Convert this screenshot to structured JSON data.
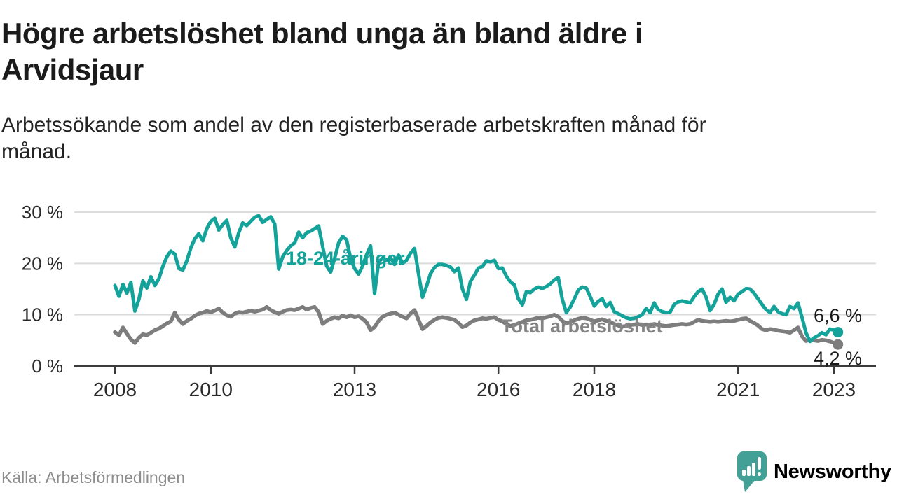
{
  "header": {
    "title_line1": "Högre arbetslöshet bland unga än bland äldre i",
    "title_line2": "Arvidsjaur",
    "subtitle_line1": "Arbetssökande som andel av den registerbaserade arbetskraften månad för",
    "subtitle_line2": "månad."
  },
  "chart_data": {
    "type": "line",
    "title": "Högre arbetslöshet bland unga än bland äldre i Arvidsjaur",
    "subtitle": "Arbetssökande som andel av den registerbaserade arbetskraften månad för månad.",
    "x_unit": "monthly, January 2008 - February 2023",
    "x_start": 2008.0,
    "x_step_years": 0.0833333,
    "x_ticks": [
      2008,
      2010,
      2013,
      2016,
      2018,
      2021,
      2023
    ],
    "y_ticks": [
      0,
      10,
      20,
      30
    ],
    "y_tick_suffix": " %",
    "ylim": [
      0,
      30
    ],
    "grid": "horizontal",
    "legend_position": "inline-labels",
    "series": [
      {
        "name": "18-24-åringar",
        "color": "#14a39a",
        "label_color": "#14a39a",
        "end_label": "6,6 %",
        "end_value": 6.6,
        "values": [
          15.7,
          13.6,
          15.9,
          14.2,
          16.3,
          10.7,
          13.0,
          16.6,
          15.2,
          17.4,
          15.7,
          17.0,
          19.4,
          21.3,
          22.4,
          21.8,
          19.0,
          18.7,
          20.5,
          23.0,
          24.8,
          25.8,
          24.4,
          26.8,
          28.2,
          28.8,
          26.5,
          27.6,
          28.4,
          25.0,
          23.2,
          26.0,
          27.9,
          27.4,
          28.2,
          29.0,
          29.3,
          28.0,
          28.6,
          29.1,
          27.7,
          18.9,
          21.3,
          22.5,
          23.4,
          24.0,
          26.1,
          25.0,
          26.0,
          26.3,
          26.8,
          27.3,
          23.3,
          19.5,
          18.3,
          21.0,
          24.0,
          25.3,
          24.6,
          21.0,
          19.0,
          17.9,
          19.5,
          21.7,
          23.4,
          14.1,
          20.3,
          21.0,
          20.6,
          21.1,
          19.8,
          21.6,
          20.0,
          20.6,
          22.0,
          22.9,
          18.0,
          13.4,
          15.5,
          18.0,
          19.2,
          19.8,
          19.8,
          19.6,
          19.3,
          18.4,
          19.1,
          15.0,
          13.0,
          16.5,
          17.7,
          19.1,
          19.4,
          20.5,
          20.3,
          20.6,
          19.0,
          19.1,
          17.5,
          16.4,
          15.8,
          13.1,
          11.9,
          14.5,
          14.3,
          15.0,
          15.4,
          15.1,
          15.5,
          16.0,
          16.8,
          17.2,
          13.0,
          10.4,
          11.5,
          13.1,
          14.8,
          15.4,
          15.2,
          13.5,
          11.7,
          12.6,
          13.1,
          11.6,
          12.4,
          10.6,
          10.2,
          9.8,
          9.4,
          9.2,
          9.3,
          9.6,
          10.0,
          11.2,
          10.4,
          12.3,
          11.0,
          10.6,
          10.4,
          10.5,
          12.0,
          12.5,
          12.7,
          12.5,
          12.3,
          13.5,
          14.5,
          15.0,
          13.4,
          10.8,
          12.0,
          14.0,
          15.0,
          12.4,
          13.4,
          12.7,
          14.0,
          14.5,
          15.1,
          15.0,
          14.2,
          13.1,
          12.0,
          11.0,
          10.4,
          11.6,
          10.6,
          10.2,
          10.0,
          11.6,
          11.2,
          12.3,
          9.5,
          6.5,
          4.8,
          5.5,
          5.9,
          6.5,
          6.1,
          7.2,
          7.0,
          6.6
        ]
      },
      {
        "name": "Total arbetslöshet",
        "color": "#7d7d7d",
        "label_color": "#848484",
        "end_label": "4,2 %",
        "end_value": 4.2,
        "values": [
          6.6,
          6.0,
          7.5,
          6.3,
          5.2,
          4.5,
          5.5,
          6.2,
          6.0,
          6.5,
          7.0,
          7.3,
          7.8,
          8.3,
          8.7,
          10.4,
          9.0,
          8.2,
          8.8,
          9.2,
          9.8,
          10.2,
          10.4,
          10.7,
          10.5,
          10.8,
          11.2,
          10.4,
          9.9,
          9.6,
          10.2,
          10.5,
          10.4,
          10.6,
          10.8,
          10.6,
          10.8,
          11.0,
          11.5,
          10.9,
          10.5,
          10.2,
          10.6,
          10.9,
          11.0,
          10.9,
          11.2,
          11.5,
          11.0,
          11.3,
          11.5,
          10.5,
          8.2,
          8.8,
          9.2,
          9.5,
          9.3,
          9.8,
          9.5,
          9.9,
          9.5,
          9.7,
          9.2,
          8.5,
          7.0,
          7.6,
          8.8,
          9.6,
          10.0,
          10.2,
          10.4,
          10.0,
          9.6,
          9.3,
          10.2,
          10.9,
          9.0,
          7.2,
          7.8,
          8.5,
          9.0,
          9.4,
          9.5,
          9.4,
          9.2,
          9.0,
          8.4,
          7.6,
          7.9,
          8.5,
          8.9,
          9.1,
          9.3,
          9.2,
          9.4,
          9.5,
          9.0,
          8.7,
          8.2,
          7.8,
          8.0,
          8.3,
          8.6,
          8.9,
          9.0,
          9.2,
          9.4,
          9.3,
          9.5,
          9.7,
          10.0,
          9.6,
          8.8,
          8.3,
          8.6,
          8.9,
          9.2,
          9.4,
          9.3,
          9.0,
          8.7,
          8.9,
          9.1,
          8.8,
          8.6,
          8.2,
          7.9,
          7.7,
          7.8,
          8.0,
          8.1,
          8.2,
          8.0,
          8.1,
          8.0,
          8.2,
          8.0,
          7.9,
          7.8,
          7.9,
          8.0,
          8.1,
          8.2,
          8.1,
          8.2,
          8.6,
          9.0,
          8.8,
          8.7,
          8.6,
          8.7,
          8.6,
          8.7,
          8.8,
          8.7,
          8.8,
          9.0,
          9.2,
          9.3,
          8.8,
          8.4,
          7.9,
          7.2,
          7.0,
          7.2,
          7.1,
          6.9,
          6.8,
          6.7,
          6.5,
          7.0,
          7.5,
          5.8,
          4.9,
          5.1,
          5.0,
          4.9,
          5.1,
          5.0,
          4.8,
          4.5,
          4.2
        ]
      }
    ]
  },
  "footer": {
    "source": "Källa: Arbetsförmedlingen",
    "brand": "Newsworthy"
  },
  "colors": {
    "accent_teal": "#14a39a",
    "series_gray": "#7d7d7d",
    "grid": "#dcdcdc",
    "axis": "#3b3b3b",
    "tick_text": "#2b2b2b",
    "text_dark": "#1a1a1a",
    "source_gray": "#8c8c8c",
    "logo_teal": "#43a096",
    "background": "#ffffff"
  }
}
